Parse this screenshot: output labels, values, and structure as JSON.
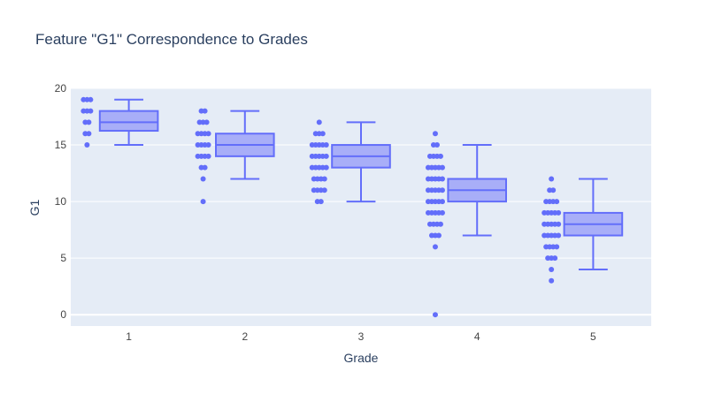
{
  "chart_data": {
    "type": "box",
    "title": "Feature \"G1\" Correspondence to Grades",
    "xlabel": "Grade",
    "ylabel": "G1",
    "categories": [
      "1",
      "2",
      "3",
      "4",
      "5"
    ],
    "ylim": [
      -1,
      20
    ],
    "yticks": [
      0,
      5,
      10,
      15,
      20
    ],
    "grid": true,
    "boxes": [
      {
        "category": "1",
        "min": 15,
        "q1": 16.25,
        "median": 17,
        "q3": 18,
        "max": 19,
        "points": [
          15,
          16,
          16,
          17,
          17,
          18,
          18,
          18,
          19,
          19,
          19
        ]
      },
      {
        "category": "2",
        "min": 12,
        "q1": 14,
        "median": 15,
        "q3": 16,
        "max": 18,
        "points": [
          10,
          12,
          13,
          13,
          14,
          14,
          14,
          14,
          15,
          15,
          15,
          15,
          16,
          16,
          16,
          16,
          17,
          17,
          17,
          18,
          18
        ]
      },
      {
        "category": "3",
        "min": 10,
        "q1": 13,
        "median": 14,
        "q3": 15,
        "max": 17,
        "points": [
          10,
          10,
          11,
          11,
          11,
          11,
          12,
          12,
          12,
          12,
          13,
          13,
          13,
          13,
          13,
          14,
          14,
          14,
          14,
          14,
          15,
          15,
          15,
          15,
          15,
          16,
          16,
          16,
          17
        ]
      },
      {
        "category": "4",
        "min": 7,
        "q1": 10,
        "median": 11,
        "q3": 12,
        "max": 15,
        "points": [
          0,
          6,
          7,
          7,
          7,
          8,
          8,
          8,
          8,
          9,
          9,
          9,
          9,
          9,
          10,
          10,
          10,
          10,
          10,
          11,
          11,
          11,
          11,
          11,
          12,
          12,
          12,
          12,
          12,
          13,
          13,
          13,
          13,
          13,
          14,
          14,
          14,
          14,
          15,
          15,
          16
        ]
      },
      {
        "category": "5",
        "min": 4,
        "q1": 7,
        "median": 8,
        "q3": 9,
        "max": 12,
        "points": [
          3,
          4,
          5,
          5,
          5,
          6,
          6,
          6,
          6,
          7,
          7,
          7,
          7,
          7,
          8,
          8,
          8,
          8,
          8,
          9,
          9,
          9,
          9,
          9,
          10,
          10,
          10,
          10,
          11,
          11,
          12
        ]
      }
    ],
    "colors": {
      "box_line": "#636efa",
      "box_fill": "#a8aef8",
      "point": "#636efa",
      "plot_bg": "#e5ecf6",
      "grid": "#ffffff",
      "text": "#444444",
      "title": "#2a3f5f"
    }
  }
}
